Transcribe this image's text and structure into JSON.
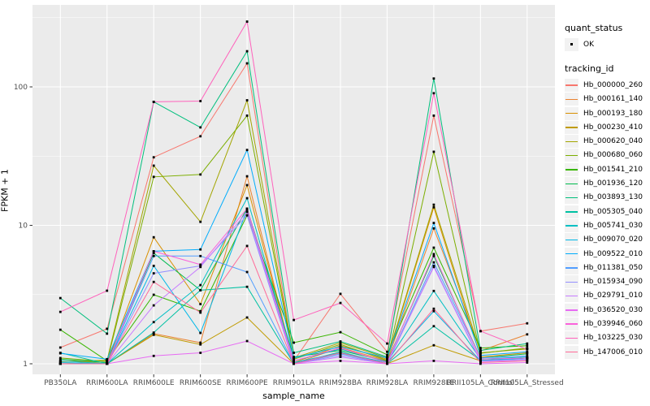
{
  "figure": {
    "x_axis_title": "sample_name",
    "y_axis_title": "FPKM + 1"
  },
  "legend": {
    "quant_status_title": "quant_status",
    "quant_status_items": [
      {
        "label": "OK",
        "marker": "point-icon"
      }
    ],
    "tracking_title": "tracking_id"
  },
  "colors": {
    "panel_background": "#EBEBEB",
    "grid": "#FFFFFF",
    "tick": "#333333",
    "tick_label": "#4D4D4D",
    "point": "#000000",
    "legend_key_background": "#F2F2F2"
  },
  "chart_data": {
    "type": "line",
    "xlabel": "sample_name",
    "ylabel": "FPKM + 1",
    "yscale": "log10",
    "grid": true,
    "legend_position": "right",
    "x": [
      "PB350LA",
      "RRIM600LA",
      "RRIM600LE",
      "RRIM600SE",
      "RRIM600PE",
      "RRIM901LA",
      "RRIM928BA",
      "RRIM928LA",
      "RRIM928LE",
      "RRII105LA_Control",
      "RRII105LA_Stressed"
    ],
    "y_ticks": [
      1,
      10,
      100
    ],
    "y_tick_labels": [
      "1",
      "10",
      "100"
    ],
    "y_minor": [
      3.162,
      31.62,
      316.2
    ],
    "ylim": [
      0.93,
      400
    ],
    "quant_status": "OK",
    "series": [
      {
        "name": "Hb_000000_260",
        "color": "#F8766D",
        "values": [
          1.31,
          1.79,
          31,
          44,
          148,
          1.05,
          3.2,
          1.22,
          62,
          1.72,
          1.96
        ]
      },
      {
        "name": "Hb_000161_140",
        "color": "#EA8331",
        "values": [
          1.02,
          1.0,
          1.65,
          1.42,
          22.6,
          1.0,
          1.31,
          1.05,
          9.5,
          1.24,
          1.63
        ]
      },
      {
        "name": "Hb_000193_180",
        "color": "#D89000",
        "values": [
          1.05,
          1.02,
          8.2,
          2.7,
          19.5,
          1.02,
          1.35,
          1.08,
          13.5,
          1.12,
          1.2
        ]
      },
      {
        "name": "Hb_000230_410",
        "color": "#C09B00",
        "values": [
          1.0,
          1.0,
          1.62,
          1.38,
          2.16,
          1.0,
          1.2,
          1.0,
          1.36,
          1.05,
          1.1
        ]
      },
      {
        "name": "Hb_000620_040",
        "color": "#A3A500",
        "values": [
          1.04,
          1.06,
          27,
          10.6,
          80,
          1.1,
          1.42,
          1.1,
          14.1,
          1.2,
          1.28
        ]
      },
      {
        "name": "Hb_000680_060",
        "color": "#7CAE00",
        "values": [
          1.1,
          1.04,
          22.4,
          23.3,
          62,
          1.08,
          1.38,
          1.06,
          34,
          1.19,
          1.3
        ]
      },
      {
        "name": "Hb_001541_210",
        "color": "#39B600",
        "values": [
          1.76,
          1.05,
          3.15,
          2.4,
          11.8,
          1.42,
          1.69,
          1.16,
          6.9,
          1.3,
          1.35
        ]
      },
      {
        "name": "Hb_001936_120",
        "color": "#00BB4E",
        "values": [
          1.08,
          1.02,
          6.3,
          3.4,
          13.2,
          1.12,
          1.25,
          1.04,
          6.0,
          1.1,
          1.18
        ]
      },
      {
        "name": "Hb_003893_130",
        "color": "#00BF7D",
        "values": [
          2.98,
          1.65,
          78,
          51,
          181,
          1.2,
          1.45,
          1.12,
          115,
          1.25,
          1.4
        ]
      },
      {
        "name": "Hb_005305_040",
        "color": "#00C1A3",
        "values": [
          1.2,
          1.0,
          1.68,
          3.4,
          3.6,
          1.0,
          1.22,
          1.0,
          1.87,
          1.06,
          1.1
        ]
      },
      {
        "name": "Hb_005741_030",
        "color": "#00BFC4",
        "values": [
          1.05,
          1.0,
          2.0,
          3.7,
          15.7,
          1.05,
          1.28,
          1.03,
          3.36,
          1.08,
          1.12
        ]
      },
      {
        "name": "Hb_009070_020",
        "color": "#00B8E7",
        "values": [
          1.02,
          1.0,
          5.1,
          1.67,
          13.0,
          1.02,
          1.2,
          1.02,
          2.4,
          1.05,
          1.1
        ]
      },
      {
        "name": "Hb_009522_010",
        "color": "#00ACFC",
        "values": [
          1.19,
          1.08,
          6.5,
          6.7,
          35,
          1.1,
          1.33,
          1.1,
          10.4,
          1.15,
          1.22
        ]
      },
      {
        "name": "Hb_011381_050",
        "color": "#529EFF",
        "values": [
          1.0,
          1.0,
          6.0,
          6.0,
          4.6,
          1.0,
          1.18,
          1.0,
          5.4,
          1.1,
          1.14
        ]
      },
      {
        "name": "Hb_015934_090",
        "color": "#9590FF",
        "values": [
          1.0,
          1.0,
          4.5,
          5.1,
          11.8,
          1.0,
          1.15,
          1.0,
          5.1,
          1.05,
          1.08
        ]
      },
      {
        "name": "Hb_029791_010",
        "color": "#C77CFF",
        "values": [
          1.0,
          1.0,
          2.64,
          5.0,
          12.5,
          1.0,
          1.12,
          1.0,
          5.0,
          1.04,
          1.06
        ]
      },
      {
        "name": "Hb_036520_030",
        "color": "#E76BF3",
        "values": [
          1.0,
          1.0,
          1.14,
          1.2,
          1.46,
          1.0,
          1.05,
          1.0,
          1.05,
          1.0,
          1.02
        ]
      },
      {
        "name": "Hb_039946_060",
        "color": "#FA62DB",
        "values": [
          1.0,
          1.0,
          6.5,
          5.2,
          13.2,
          1.05,
          1.3,
          1.02,
          6.2,
          1.08,
          1.1
        ]
      },
      {
        "name": "Hb_103225_030",
        "color": "#FF62BC",
        "values": [
          2.37,
          3.37,
          78,
          79,
          296,
          2.07,
          2.75,
          1.4,
          90,
          1.72,
          1.27
        ]
      },
      {
        "name": "Hb_147006_010",
        "color": "#FF6A98",
        "values": [
          1.0,
          1.0,
          3.9,
          2.34,
          7.1,
          1.0,
          1.2,
          1.0,
          2.5,
          1.02,
          1.05
        ]
      }
    ]
  }
}
